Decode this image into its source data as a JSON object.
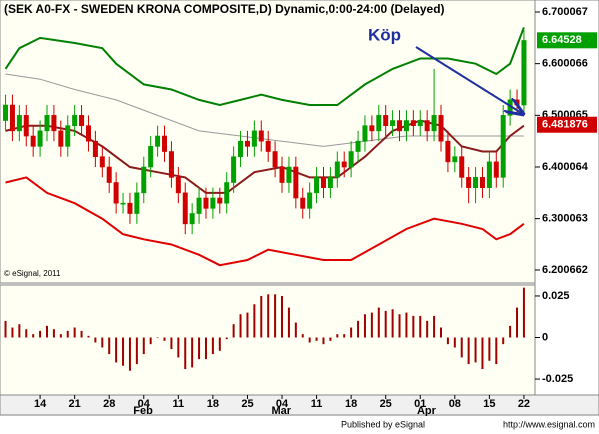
{
  "chart_data": [
    {
      "type": "candlestick",
      "title": "(SEK A0-FX - SWEDEN KRONA COMPOSITE,D) Dynamic,0:00-24:00 (Delayed)",
      "copyright": "© eSignal, 2011",
      "annotation": "Köp",
      "up_color": "#00a000",
      "down_color": "#d00000",
      "open": [
        6.49,
        6.52,
        6.47,
        6.5,
        6.46,
        6.44,
        6.47,
        6.5,
        6.47,
        6.44,
        6.48,
        6.5,
        6.48,
        6.45,
        6.42,
        6.4,
        6.37,
        6.33,
        6.33,
        6.31,
        6.35,
        6.4,
        6.44,
        6.46,
        6.43,
        6.38,
        6.35,
        6.29,
        6.31,
        6.34,
        6.32,
        6.34,
        6.33,
        6.37,
        6.42,
        6.45,
        6.44,
        6.47,
        6.45,
        6.43,
        6.4,
        6.37,
        6.4,
        6.34,
        6.32,
        6.35,
        6.38,
        6.36,
        6.38,
        6.41,
        6.4,
        6.43,
        6.45,
        6.48,
        6.47,
        6.5,
        6.48,
        6.49,
        6.47,
        6.49,
        6.48,
        6.49,
        6.47,
        6.5,
        6.45,
        6.41,
        6.42,
        6.38,
        6.36,
        6.38,
        6.36,
        6.41,
        6.38,
        6.5,
        6.53,
        6.52
      ],
      "high": [
        6.54,
        6.54,
        6.52,
        6.52,
        6.48,
        6.49,
        6.52,
        6.52,
        6.49,
        6.5,
        6.52,
        6.52,
        6.5,
        6.47,
        6.44,
        6.42,
        6.39,
        6.35,
        6.35,
        6.37,
        6.42,
        6.46,
        6.48,
        6.48,
        6.45,
        6.4,
        6.37,
        6.33,
        6.36,
        6.36,
        6.36,
        6.36,
        6.39,
        6.44,
        6.47,
        6.47,
        6.49,
        6.49,
        6.47,
        6.45,
        6.42,
        6.42,
        6.42,
        6.36,
        6.37,
        6.4,
        6.4,
        6.4,
        6.43,
        6.43,
        6.45,
        6.47,
        6.5,
        6.5,
        6.52,
        6.52,
        6.51,
        6.51,
        6.51,
        6.51,
        6.51,
        6.51,
        6.59,
        6.52,
        6.47,
        6.44,
        6.44,
        6.4,
        6.4,
        6.4,
        6.43,
        6.43,
        6.52,
        6.55,
        6.55,
        6.665
      ],
      "low": [
        6.47,
        6.45,
        6.45,
        6.44,
        6.42,
        6.42,
        6.45,
        6.45,
        6.42,
        6.42,
        6.46,
        6.46,
        6.43,
        6.4,
        6.38,
        6.35,
        6.31,
        6.31,
        6.29,
        6.29,
        6.33,
        6.38,
        6.42,
        6.41,
        6.36,
        6.33,
        6.27,
        6.27,
        6.29,
        6.3,
        6.3,
        6.31,
        6.31,
        6.35,
        6.4,
        6.42,
        6.42,
        6.43,
        6.41,
        6.38,
        6.35,
        6.35,
        6.32,
        6.3,
        6.3,
        6.33,
        6.34,
        6.34,
        6.36,
        6.38,
        6.38,
        6.41,
        6.43,
        6.45,
        6.45,
        6.46,
        6.46,
        6.45,
        6.45,
        6.46,
        6.46,
        6.45,
        6.45,
        6.43,
        6.39,
        6.39,
        6.36,
        6.33,
        6.33,
        6.34,
        6.34,
        6.36,
        6.36,
        6.48,
        6.5,
        6.5
      ],
      "close": [
        6.52,
        6.47,
        6.5,
        6.46,
        6.44,
        6.47,
        6.5,
        6.47,
        6.44,
        6.48,
        6.5,
        6.48,
        6.45,
        6.42,
        6.4,
        6.37,
        6.33,
        6.33,
        6.31,
        6.35,
        6.4,
        6.44,
        6.46,
        6.43,
        6.38,
        6.35,
        6.29,
        6.31,
        6.34,
        6.32,
        6.34,
        6.33,
        6.37,
        6.42,
        6.45,
        6.44,
        6.47,
        6.45,
        6.43,
        6.4,
        6.37,
        6.4,
        6.34,
        6.32,
        6.35,
        6.38,
        6.36,
        6.38,
        6.41,
        6.4,
        6.43,
        6.45,
        6.48,
        6.47,
        6.5,
        6.48,
        6.49,
        6.47,
        6.49,
        6.48,
        6.49,
        6.47,
        6.5,
        6.45,
        6.41,
        6.42,
        6.38,
        6.36,
        6.38,
        6.36,
        6.41,
        6.38,
        6.5,
        6.53,
        6.52,
        6.645
      ],
      "lines": [
        {
          "color": "#999999",
          "x": [
            0,
            5,
            10,
            16,
            22,
            28,
            34,
            40,
            46,
            52,
            58,
            64,
            70,
            75
          ],
          "values": [
            6.58,
            6.57,
            6.55,
            6.53,
            6.5,
            6.47,
            6.46,
            6.45,
            6.44,
            6.45,
            6.46,
            6.46,
            6.46,
            6.46
          ]
        },
        {
          "color": "#008000",
          "x": [
            0,
            2,
            5,
            10,
            14,
            16,
            20,
            24,
            28,
            31,
            34,
            37,
            40,
            44,
            48,
            52,
            56,
            60,
            64,
            68,
            71,
            73,
            75
          ],
          "values": [
            6.59,
            6.63,
            6.65,
            6.64,
            6.63,
            6.6,
            6.56,
            6.55,
            6.53,
            6.52,
            6.53,
            6.54,
            6.53,
            6.52,
            6.52,
            6.56,
            6.59,
            6.61,
            6.61,
            6.6,
            6.58,
            6.6,
            6.67
          ]
        },
        {
          "color": "#e00000",
          "x": [
            0,
            3,
            6,
            10,
            14,
            17,
            20,
            24,
            28,
            31,
            35,
            38,
            42,
            46,
            50,
            54,
            58,
            62,
            66,
            69,
            71,
            73,
            75
          ],
          "values": [
            6.37,
            6.38,
            6.35,
            6.33,
            6.3,
            6.27,
            6.26,
            6.25,
            6.23,
            6.21,
            6.22,
            6.24,
            6.23,
            6.22,
            6.22,
            6.25,
            6.28,
            6.3,
            6.29,
            6.28,
            6.26,
            6.27,
            6.29
          ]
        },
        {
          "color": "#8b1a1a",
          "x": [
            0,
            3,
            6,
            10,
            14,
            18,
            22,
            26,
            29,
            32,
            36,
            40,
            44,
            48,
            52,
            56,
            60,
            63,
            66,
            69,
            71,
            73,
            75
          ],
          "values": [
            6.47,
            6.48,
            6.48,
            6.47,
            6.44,
            6.4,
            6.39,
            6.38,
            6.35,
            6.35,
            6.39,
            6.4,
            6.38,
            6.38,
            6.42,
            6.47,
            6.49,
            6.48,
            6.44,
            6.43,
            6.43,
            6.46,
            6.48
          ]
        }
      ],
      "last_price": {
        "value": 6.64528,
        "color": "#00a000"
      },
      "ma_price": {
        "value": 6.481876,
        "color": "#d00000"
      },
      "xlim": [
        -0.8,
        76.6
      ],
      "ylim": [
        6.1755,
        6.7233
      ],
      "yticks": [
        6.700067,
        6.600066,
        6.500065,
        6.400064,
        6.300063,
        6.200662
      ],
      "xticks": [
        {
          "value": 5,
          "label": "14"
        },
        {
          "value": 10,
          "label": "21"
        },
        {
          "value": 15,
          "label": "28"
        },
        {
          "value": 20,
          "label": "04"
        },
        {
          "value": 25,
          "label": "11"
        },
        {
          "value": 30,
          "label": "18"
        },
        {
          "value": 35,
          "label": "25"
        },
        {
          "value": 40,
          "label": "04"
        },
        {
          "value": 45,
          "label": "11"
        },
        {
          "value": 50,
          "label": "18"
        },
        {
          "value": 55,
          "label": "25"
        },
        {
          "value": 60,
          "label": "01"
        },
        {
          "value": 65,
          "label": "08"
        },
        {
          "value": 70,
          "label": "15"
        },
        {
          "value": 75,
          "label": "22"
        }
      ],
      "months": [
        {
          "value": 17,
          "label": "Feb"
        },
        {
          "value": 37,
          "label": "Mar"
        },
        {
          "value": 58,
          "label": "Apr"
        }
      ]
    },
    {
      "type": "bar",
      "color": "#a00000",
      "values": [
        0.01,
        0.006,
        0.008,
        0.005,
        0.002,
        0.004,
        0.007,
        0.005,
        0.002,
        0.004,
        0.006,
        0.004,
        0.001,
        -0.003,
        -0.006,
        -0.01,
        -0.015,
        -0.017,
        -0.02,
        -0.016,
        -0.01,
        -0.004,
        0.0,
        -0.002,
        -0.007,
        -0.012,
        -0.019,
        -0.018,
        -0.013,
        -0.013,
        -0.01,
        -0.008,
        -0.001,
        0.008,
        0.014,
        0.015,
        0.02,
        0.025,
        0.026,
        0.026,
        0.025,
        0.018,
        0.009,
        0.002,
        -0.003,
        -0.002,
        -0.004,
        -0.002,
        0.002,
        0.002,
        0.006,
        0.01,
        0.014,
        0.015,
        0.018,
        0.016,
        0.017,
        0.014,
        0.015,
        0.013,
        0.013,
        0.01,
        0.013,
        0.006,
        -0.004,
        -0.006,
        -0.012,
        -0.016,
        -0.015,
        -0.019,
        -0.014,
        -0.016,
        -0.004,
        0.007,
        0.018,
        0.03
      ],
      "xlim": [
        -0.8,
        76.6
      ],
      "ylim": [
        -0.0346,
        0.0316
      ],
      "yticks": [
        0.025,
        0,
        -0.025
      ]
    }
  ],
  "footer": {
    "text": "Published by eSignal",
    "url": "http://www.esignal.com"
  }
}
